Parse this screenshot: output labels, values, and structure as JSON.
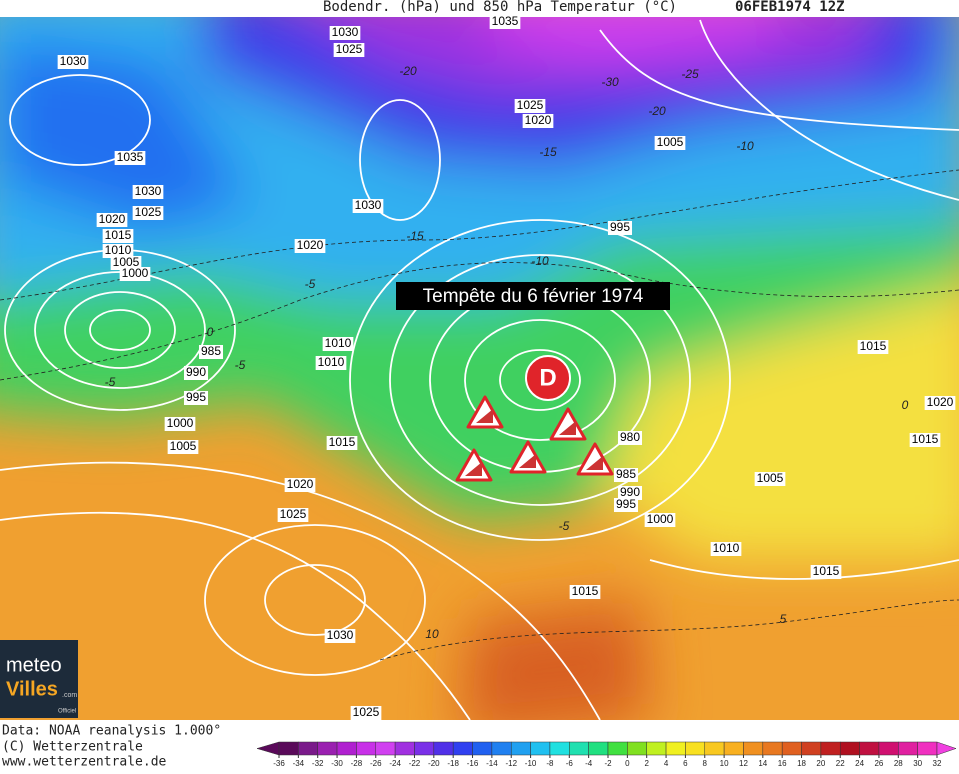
{
  "header": {
    "title": "Bodendr. (hPa) und 850 hPa Temperatur (°C)",
    "date": "06FEB1974 12Z"
  },
  "annotation": "Tempête du 6 février 1974",
  "low_marker": "D",
  "isobar_labels": [
    "1030",
    "1030",
    "1025",
    "1035",
    "1030",
    "1025",
    "1020",
    "1015",
    "1010",
    "1005",
    "1000",
    "985",
    "990",
    "995",
    "1000",
    "1005",
    "1010",
    "1010",
    "1015",
    "1020",
    "1025",
    "1030",
    "1025",
    "1035",
    "1025",
    "1020",
    "1005",
    "995",
    "1030",
    "1020",
    "980",
    "985",
    "990",
    "995",
    "1000",
    "1010",
    "1005",
    "1015",
    "1015",
    "1015",
    "1020",
    "1015"
  ],
  "temperature_labels": [
    "-20",
    "-30",
    "-25",
    "-20",
    "-15",
    "-10",
    "-15",
    "-10",
    "-5",
    "0",
    "-5",
    "-5",
    "-5",
    "10",
    "5",
    "0"
  ],
  "footer": {
    "source": "Data: NOAA reanalysis 1.000°",
    "copyright": "(C) Wetterzentrale",
    "url": "www.wetterzentrale.de"
  },
  "logo": {
    "line1": "meteo",
    "line2": "Villes",
    "suffix": ".com",
    "tag": "Officiel"
  },
  "colorbar": {
    "ticks": [
      -36,
      -34,
      -32,
      -30,
      -28,
      -26,
      -24,
      -22,
      -20,
      -18,
      -16,
      -14,
      -12,
      -10,
      -8,
      -6,
      -4,
      -2,
      0,
      2,
      4,
      6,
      8,
      10,
      12,
      14,
      16,
      18,
      20,
      22,
      24,
      26,
      28,
      30,
      32
    ],
    "colors": [
      "#5a0a5a",
      "#7a1a8a",
      "#9a20b0",
      "#b020d0",
      "#c830e8",
      "#d040f0",
      "#a030e0",
      "#7a30e8",
      "#5030e8",
      "#3040f0",
      "#2060f0",
      "#2080f0",
      "#20a0f0",
      "#20c0f0",
      "#20e0e0",
      "#20e0b0",
      "#20e080",
      "#40e040",
      "#80e020",
      "#c0f020",
      "#f0f020",
      "#f8e020",
      "#f8c820",
      "#f8b020",
      "#f09020",
      "#e87820",
      "#e06020",
      "#d04020",
      "#c02020",
      "#b01020",
      "#c01040",
      "#d01070",
      "#e020a0",
      "#f030c0",
      "#f040e0"
    ]
  }
}
